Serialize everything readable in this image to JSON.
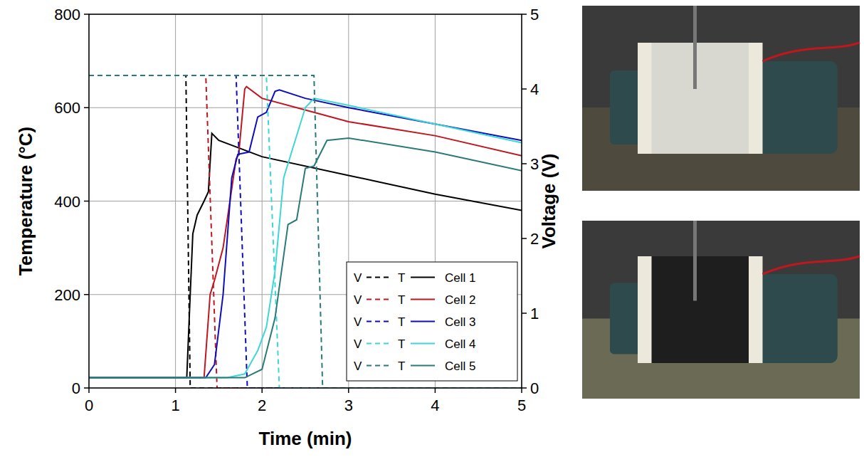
{
  "chart_data": {
    "type": "line",
    "x_label": "Time (min)",
    "y_label": "Temperature (°C)",
    "y2_label": "Voltage (V)",
    "xlim": [
      0,
      5
    ],
    "xticks": [
      0,
      1,
      2,
      3,
      4,
      5
    ],
    "ylim": [
      0,
      800
    ],
    "yticks": [
      0,
      200,
      400,
      600,
      800
    ],
    "y2lim": [
      0,
      5
    ],
    "y2ticks": [
      0,
      1,
      2,
      3,
      4,
      5
    ],
    "grid": true,
    "legend": "lower right",
    "series": [
      {
        "name": "Cell 1",
        "legend_tag": "V",
        "axis": "y2",
        "color": "#000000",
        "line_style": "dashed",
        "x": [
          0,
          1.12,
          1.17,
          5
        ],
        "values": [
          4.18,
          4.18,
          0,
          0
        ]
      },
      {
        "name": "Cell 1",
        "legend_tag": "T",
        "color": "#000000",
        "line_style": "solid",
        "x": [
          0,
          1.13,
          1.17,
          1.2,
          1.25,
          1.33,
          1.38,
          1.42,
          1.5,
          2,
          3,
          4,
          5
        ],
        "values": [
          22,
          22,
          200,
          330,
          370,
          400,
          420,
          545,
          530,
          495,
          455,
          415,
          380
        ]
      },
      {
        "name": "Cell 2",
        "legend_tag": "V",
        "axis": "y2",
        "color": "#c0171f",
        "line_style": "dashed",
        "x": [
          0,
          1.35,
          1.48,
          5
        ],
        "values": [
          4.18,
          4.18,
          0,
          0
        ]
      },
      {
        "name": "Cell 2",
        "legend_tag": "T",
        "color": "#c0171f",
        "line_style": "solid",
        "x": [
          0,
          1.33,
          1.4,
          1.45,
          1.55,
          1.7,
          1.73,
          1.8,
          1.82,
          2,
          2.5,
          3,
          4,
          5
        ],
        "values": [
          22,
          22,
          200,
          230,
          300,
          490,
          500,
          640,
          645,
          620,
          595,
          570,
          540,
          497
        ]
      },
      {
        "name": "Cell 3",
        "legend_tag": "V",
        "axis": "y2",
        "color": "#0d0dbd",
        "line_style": "dashed",
        "x": [
          0,
          1.7,
          1.83,
          5
        ],
        "values": [
          4.18,
          4.18,
          0,
          0
        ]
      },
      {
        "name": "Cell 3",
        "legend_tag": "T",
        "color": "#0d0dbd",
        "line_style": "solid",
        "x": [
          0,
          1.35,
          1.45,
          1.55,
          1.65,
          1.72,
          1.85,
          1.95,
          2.05,
          2.15,
          2.2,
          2.5,
          3,
          4,
          5
        ],
        "values": [
          22,
          22,
          50,
          200,
          450,
          500,
          505,
          580,
          590,
          635,
          638,
          620,
          600,
          565,
          530
        ]
      },
      {
        "name": "Cell 4",
        "legend_tag": "V",
        "axis": "y2",
        "color": "#3fd6d6",
        "line_style": "dashed",
        "x": [
          0,
          2.05,
          2.2,
          5
        ],
        "values": [
          4.18,
          4.18,
          0,
          0
        ]
      },
      {
        "name": "Cell 4",
        "legend_tag": "T",
        "color": "#3fd6d6",
        "line_style": "solid",
        "x": [
          0,
          1.6,
          1.8,
          1.95,
          2.05,
          2.15,
          2.25,
          2.35,
          2.5,
          2.6,
          3,
          4,
          5
        ],
        "values": [
          22,
          22,
          30,
          80,
          130,
          250,
          450,
          510,
          600,
          620,
          605,
          565,
          525
        ]
      },
      {
        "name": "Cell 5",
        "legend_tag": "V",
        "axis": "y2",
        "color": "#2a7a78",
        "line_style": "dashed",
        "x": [
          0,
          2.6,
          2.7,
          5
        ],
        "values": [
          4.18,
          4.18,
          0,
          0
        ]
      },
      {
        "name": "Cell 5",
        "legend_tag": "T",
        "color": "#2a7a78",
        "line_style": "solid",
        "x": [
          0,
          1.8,
          2.0,
          2.15,
          2.3,
          2.4,
          2.5,
          2.6,
          2.75,
          3,
          4,
          5
        ],
        "values": [
          22,
          22,
          40,
          150,
          350,
          360,
          470,
          475,
          530,
          535,
          505,
          465
        ]
      }
    ]
  }
}
